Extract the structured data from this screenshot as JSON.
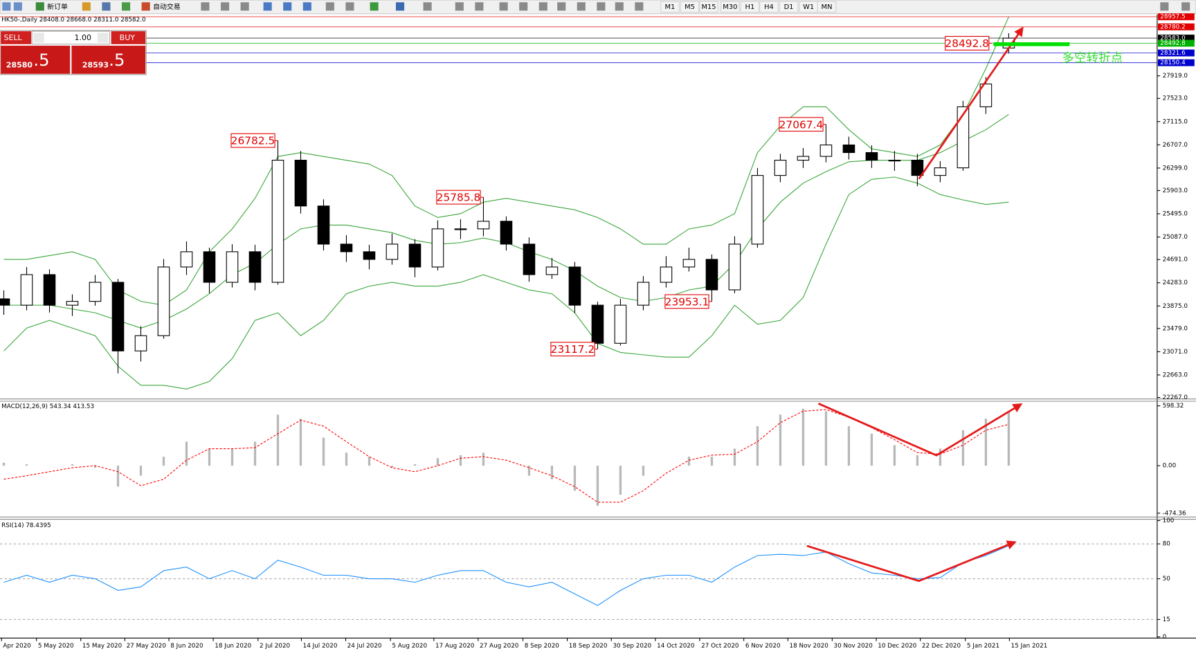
{
  "toolbar": {
    "buttons": [
      "新订单",
      "自动交易"
    ],
    "timeframes": [
      "M1",
      "M5",
      "M15",
      "M30",
      "H1",
      "H4",
      "D1",
      "W1",
      "MN"
    ]
  },
  "trade_panel": {
    "sell": "SELL",
    "buy": "BUY",
    "lots": "1.00",
    "sell_price": "28580",
    "sell_pips": ".5",
    "buy_price": "28593",
    "buy_pips": ".5"
  },
  "chart_data": [
    {
      "type": "candlestick",
      "title": "HK50-,Daily  28408.0 28668.0 28311.0 28582.0",
      "up_color": "#ffffff",
      "down_color": "#000000",
      "candles": [
        [
          24000,
          24150,
          23720,
          23889
        ],
        [
          23889,
          24560,
          23800,
          24426
        ],
        [
          24426,
          24520,
          23760,
          23889
        ],
        [
          23889,
          24080,
          23700,
          23956
        ],
        [
          23956,
          24420,
          23880,
          24291
        ],
        [
          24291,
          24350,
          22690,
          23085
        ],
        [
          23085,
          23520,
          22900,
          23353
        ],
        [
          23353,
          24700,
          23300,
          24560
        ],
        [
          24560,
          25010,
          24420,
          24828
        ],
        [
          24828,
          24900,
          24100,
          24291
        ],
        [
          24291,
          24960,
          24200,
          24828
        ],
        [
          24828,
          24950,
          24150,
          24291
        ],
        [
          24291,
          26782.5,
          24250,
          26437
        ],
        [
          26437,
          26600,
          25500,
          25632
        ],
        [
          25632,
          25750,
          24850,
          24962
        ],
        [
          24962,
          25120,
          24650,
          24828
        ],
        [
          24828,
          24950,
          24520,
          24694
        ],
        [
          24694,
          25150,
          24600,
          24962
        ],
        [
          24962,
          25050,
          24380,
          24560
        ],
        [
          24560,
          25380,
          24500,
          25230
        ],
        [
          25230,
          25400,
          25050,
          25230
        ],
        [
          25230,
          25785.8,
          25100,
          25364
        ],
        [
          25364,
          25450,
          24850,
          24962
        ],
        [
          24962,
          25080,
          24300,
          24426
        ],
        [
          24426,
          24720,
          24350,
          24560
        ],
        [
          24560,
          24650,
          23750,
          23889
        ],
        [
          23889,
          23950,
          23117.2,
          23219
        ],
        [
          23219,
          24000,
          23180,
          23889
        ],
        [
          23889,
          24400,
          23800,
          24291
        ],
        [
          24291,
          24750,
          24200,
          24560
        ],
        [
          24560,
          24900,
          24480,
          24694
        ],
        [
          24694,
          24780,
          23953.1,
          24158
        ],
        [
          24158,
          25100,
          24100,
          24962
        ],
        [
          24962,
          26300,
          24900,
          26169
        ],
        [
          26169,
          26550,
          26050,
          26437
        ],
        [
          26437,
          26650,
          26300,
          26504
        ],
        [
          26504,
          27067.4,
          26400,
          26705
        ],
        [
          26705,
          26850,
          26450,
          26571
        ],
        [
          26571,
          26700,
          26300,
          26437
        ],
        [
          26437,
          26600,
          26250,
          26437
        ],
        [
          26437,
          26550,
          25980,
          26169
        ],
        [
          26169,
          26420,
          26050,
          26303
        ],
        [
          26303,
          27480,
          26250,
          27375
        ],
        [
          27375,
          27900,
          27250,
          27777
        ],
        [
          28408,
          28668,
          28311,
          28582
        ]
      ],
      "bands": {
        "color": "#3aa63a",
        "upper": [
          24693,
          24693,
          24760,
          24827,
          24693,
          24157,
          23956,
          23889,
          24157,
          24827,
          25230,
          25766,
          26503,
          26570,
          26503,
          26436,
          26369,
          26168,
          25632,
          25431,
          25498,
          25699,
          25766,
          25699,
          25632,
          25565,
          25431,
          25230,
          24961,
          24961,
          25230,
          25297,
          25498,
          26570,
          27040,
          27375,
          27375,
          26973,
          26637,
          26570,
          26503,
          26704,
          27241,
          28045,
          28957
        ],
        "middle": [
          23889,
          23889,
          23889,
          23822,
          23755,
          23621,
          23487,
          23621,
          23822,
          24090,
          24425,
          24626,
          24961,
          25230,
          25297,
          25297,
          25230,
          25163,
          25028,
          24961,
          24988,
          25069,
          24988,
          24827,
          24693,
          24492,
          24224,
          24023,
          23956,
          24023,
          24157,
          24224,
          24626,
          25230,
          25699,
          26034,
          26235,
          26410,
          26436,
          26436,
          26436,
          26570,
          26772,
          26973,
          27241
        ],
        "lower": [
          23084,
          23487,
          23621,
          23487,
          23352,
          22816,
          22481,
          22481,
          22414,
          22548,
          22950,
          23621,
          23755,
          23352,
          23621,
          24090,
          24224,
          24291,
          24224,
          24224,
          24291,
          24425,
          24291,
          24157,
          24090,
          23755,
          23218,
          23058,
          23017,
          22977,
          22977,
          23352,
          23889,
          23554,
          23621,
          24023,
          24961,
          25833,
          26101,
          26141,
          26034,
          25833,
          25739,
          25659,
          25699
        ]
      },
      "annotations": [
        26782.5,
        25785.8,
        23117.2,
        23953.1,
        27067.4,
        28492.8
      ],
      "annotation_color": "#e00000",
      "pivot_label": {
        "text": "多空转折点",
        "color": "#33dd33"
      },
      "price_levels": [
        {
          "value": 28957.5,
          "color": "#e00000"
        },
        {
          "value": 28780.2,
          "color": "#e00000"
        },
        {
          "value": 28583,
          "label": "28583.0",
          "color": "#000000"
        },
        {
          "value": 28492.8,
          "color": "#00b000"
        },
        {
          "value": 28321.6,
          "color": "#0000cc"
        },
        {
          "value": 28150.4,
          "color": "#0000cc"
        }
      ],
      "ylim": [
        22254,
        28998
      ],
      "yticks": [
        {
          "value": 27919,
          "label": "27919.0"
        },
        {
          "value": 27523,
          "label": "27523.0"
        },
        {
          "value": 27115,
          "label": "27115.0"
        },
        {
          "value": 26707,
          "label": "26707.0"
        },
        {
          "value": 26299,
          "label": "26299.0"
        },
        {
          "value": 25903,
          "label": "25903.0"
        },
        {
          "value": 25495,
          "label": "25495.0"
        },
        {
          "value": 25087,
          "label": "25087.0"
        },
        {
          "value": 24691,
          "label": "24691.0"
        },
        {
          "value": 24283,
          "label": "24283.0"
        },
        {
          "value": 23875,
          "label": "23875.0"
        },
        {
          "value": 23479,
          "label": "23479.0"
        },
        {
          "value": 23071,
          "label": "23071.0"
        },
        {
          "value": 22663,
          "label": "22663.0"
        },
        {
          "value": 22267,
          "label": "22267.0"
        }
      ],
      "xlim": [
        -0.1667,
        50.5
      ],
      "xticks": [
        {
          "value": -0.1,
          "label": "Apr 2020"
        },
        {
          "value": 1.43,
          "label": "5 May 2020"
        },
        {
          "value": 3.37,
          "label": "15 May 2020"
        },
        {
          "value": 5.3,
          "label": "27 May 2020"
        },
        {
          "value": 7.23,
          "label": "8 Jun 2020"
        },
        {
          "value": 9.17,
          "label": "18 Jun 2020"
        },
        {
          "value": 11.13,
          "label": "2 Jul 2020"
        },
        {
          "value": 13.03,
          "label": "14 Jul 2020"
        },
        {
          "value": 14.97,
          "label": "24 Jul 2020"
        },
        {
          "value": 16.93,
          "label": "5 Aug 2020"
        },
        {
          "value": 18.83,
          "label": "17 Aug 2020"
        },
        {
          "value": 20.77,
          "label": "27 Aug 2020"
        },
        {
          "value": 22.73,
          "label": "8 Sep 2020"
        },
        {
          "value": 24.67,
          "label": "18 Sep 2020"
        },
        {
          "value": 26.6,
          "label": "30 Sep 2020"
        },
        {
          "value": 28.53,
          "label": "14 Oct 2020"
        },
        {
          "value": 30.47,
          "label": "27 Oct 2020"
        },
        {
          "value": 32.4,
          "label": "6 Nov 2020"
        },
        {
          "value": 34.33,
          "label": "18 Nov 2020"
        },
        {
          "value": 36.27,
          "label": "30 Nov 2020"
        },
        {
          "value": 38.2,
          "label": "10 Dec 2020"
        },
        {
          "value": 40.13,
          "label": "22 Dec 2020"
        },
        {
          "value": 42.1,
          "label": "5 Jan 2021"
        },
        {
          "value": 44.03,
          "label": "15 Jan 2021"
        }
      ]
    },
    {
      "type": "macd",
      "title": "MACD(12,26,9) 543.34 413.53",
      "histogram": {
        "color": "#b8b8b8",
        "values": [
          30,
          15,
          0,
          15,
          -20,
          -210,
          -100,
          90,
          240,
          170,
          170,
          240,
          510,
          470,
          280,
          130,
          90,
          -20,
          15,
          75,
          105,
          130,
          0,
          -100,
          -135,
          -250,
          -400,
          -290,
          -100,
          0,
          90,
          90,
          170,
          395,
          510,
          570,
          545,
          395,
          320,
          205,
          105,
          170,
          355,
          470,
          543.34
        ]
      },
      "signal": {
        "color": "#ff0000",
        "values": [
          -135,
          -100,
          -60,
          -20,
          0,
          -60,
          -200,
          -135,
          55,
          170,
          170,
          180,
          320,
          455,
          395,
          240,
          90,
          -20,
          -60,
          0,
          75,
          90,
          55,
          -20,
          -100,
          -210,
          -365,
          -365,
          -250,
          -75,
          55,
          105,
          115,
          240,
          430,
          545,
          560,
          485,
          380,
          260,
          130,
          115,
          205,
          355,
          413.53
        ]
      },
      "ylim": [
        -505,
        644
      ],
      "yticks": [
        598.32,
        {
          "value": 0,
          "label": "0.00"
        },
        -474.36
      ]
    },
    {
      "type": "line",
      "title": "RSI(14) 78.4395",
      "series": [
        {
          "color": "#1e90ff",
          "values": [
            47,
            53,
            47,
            53,
            50,
            40,
            43,
            57,
            60,
            50,
            57,
            50,
            66,
            60,
            53,
            53,
            50,
            50,
            47,
            53,
            57,
            57,
            47,
            43,
            47,
            37,
            27,
            40,
            50,
            53,
            53,
            47,
            60,
            70,
            71,
            70,
            73,
            63,
            55,
            53,
            50,
            51,
            64,
            70,
            78.4395
          ]
        }
      ],
      "levels": [
        80,
        50,
        15
      ],
      "ylim": [
        -1,
        100.5
      ],
      "yticks": [
        100,
        80,
        50,
        15,
        0
      ]
    }
  ]
}
